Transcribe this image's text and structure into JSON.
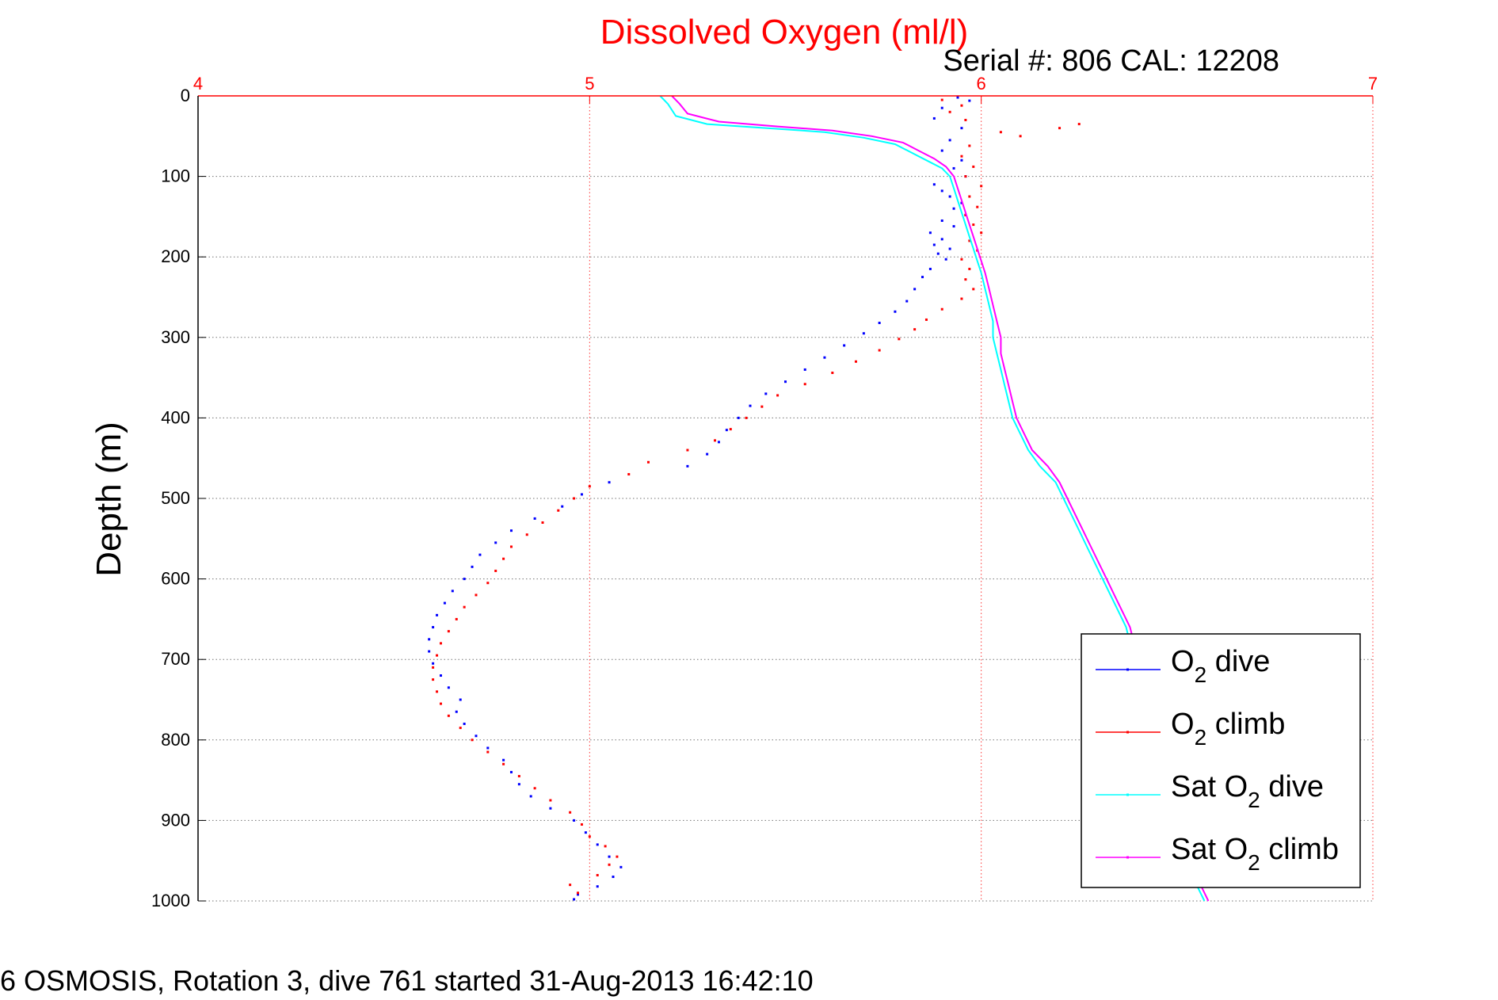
{
  "chart_data": {
    "type": "scatter",
    "title": "Dissolved Oxygen (ml/l)",
    "subtitle": "Serial #: 806  CAL: 12208",
    "ylabel": "Depth (m)",
    "footer": "6 OSMOSIS, Rotation 3, dive 761 started 31-Aug-2013 16:42:10",
    "xlim": [
      4,
      7
    ],
    "ylim": [
      0,
      1000
    ],
    "y_reversed": true,
    "x_axis_position": "top",
    "xticks": [
      "4",
      "5",
      "6",
      "7"
    ],
    "yticks": [
      "0",
      "100",
      "200",
      "300",
      "400",
      "500",
      "600",
      "700",
      "800",
      "900",
      "1000"
    ],
    "grid": true,
    "legend_position": "lower-right",
    "colors": {
      "title": "#ff0000",
      "x_axis": "#ff0000",
      "grid_x": "#ff0000",
      "grid_y": "#000000",
      "o2_dive": "#0000ff",
      "o2_climb": "#ff0000",
      "sat_dive": "#00ffff",
      "sat_climb": "#ff00ff"
    },
    "legend": [
      {
        "key": "o2_dive",
        "prefix": "O",
        "sub": "2",
        "suffix": " dive",
        "color": "#0000ff"
      },
      {
        "key": "o2_climb",
        "prefix": "O",
        "sub": "2",
        "suffix": " climb",
        "color": "#ff0000"
      },
      {
        "key": "sat_dive",
        "prefix": "Sat O",
        "sub": "2",
        "suffix": " dive",
        "color": "#00ffff"
      },
      {
        "key": "sat_climb",
        "prefix": "Sat O",
        "sub": "2",
        "suffix": " climb",
        "color": "#ff00ff"
      }
    ],
    "series": [
      {
        "key": "o2_dive",
        "style": "points",
        "color": "#0000ff",
        "points": [
          [
            5.94,
            2
          ],
          [
            5.97,
            6
          ],
          [
            5.9,
            15
          ],
          [
            5.88,
            28
          ],
          [
            5.95,
            40
          ],
          [
            5.92,
            55
          ],
          [
            5.9,
            68
          ],
          [
            5.95,
            80
          ],
          [
            5.93,
            90
          ],
          [
            5.96,
            100
          ],
          [
            5.88,
            110
          ],
          [
            5.9,
            118
          ],
          [
            5.92,
            125
          ],
          [
            5.95,
            133
          ],
          [
            5.93,
            140
          ],
          [
            5.96,
            148
          ],
          [
            5.9,
            155
          ],
          [
            5.93,
            162
          ],
          [
            5.87,
            170
          ],
          [
            5.9,
            178
          ],
          [
            5.88,
            185
          ],
          [
            5.92,
            190
          ],
          [
            5.89,
            196
          ],
          [
            5.91,
            203
          ],
          [
            5.87,
            215
          ],
          [
            5.85,
            225
          ],
          [
            5.83,
            240
          ],
          [
            5.81,
            255
          ],
          [
            5.78,
            268
          ],
          [
            5.74,
            282
          ],
          [
            5.7,
            295
          ],
          [
            5.65,
            310
          ],
          [
            5.6,
            325
          ],
          [
            5.55,
            340
          ],
          [
            5.5,
            355
          ],
          [
            5.45,
            370
          ],
          [
            5.41,
            385
          ],
          [
            5.38,
            400
          ],
          [
            5.35,
            415
          ],
          [
            5.33,
            430
          ],
          [
            5.3,
            445
          ],
          [
            5.25,
            460
          ],
          [
            5.05,
            480
          ],
          [
            4.98,
            495
          ],
          [
            4.93,
            510
          ],
          [
            4.86,
            525
          ],
          [
            4.8,
            540
          ],
          [
            4.76,
            555
          ],
          [
            4.72,
            570
          ],
          [
            4.7,
            585
          ],
          [
            4.68,
            600
          ],
          [
            4.65,
            615
          ],
          [
            4.63,
            630
          ],
          [
            4.61,
            645
          ],
          [
            4.6,
            660
          ],
          [
            4.59,
            675
          ],
          [
            4.59,
            690
          ],
          [
            4.6,
            705
          ],
          [
            4.62,
            720
          ],
          [
            4.64,
            735
          ],
          [
            4.67,
            750
          ],
          [
            4.66,
            765
          ],
          [
            4.68,
            780
          ],
          [
            4.71,
            795
          ],
          [
            4.74,
            810
          ],
          [
            4.78,
            825
          ],
          [
            4.8,
            840
          ],
          [
            4.82,
            855
          ],
          [
            4.85,
            870
          ],
          [
            4.9,
            885
          ],
          [
            4.96,
            900
          ],
          [
            4.99,
            915
          ],
          [
            5.02,
            930
          ],
          [
            5.05,
            945
          ],
          [
            5.08,
            958
          ],
          [
            5.06,
            970
          ],
          [
            5.02,
            982
          ],
          [
            4.97,
            992
          ],
          [
            4.96,
            998
          ]
        ]
      },
      {
        "key": "o2_climb",
        "style": "points",
        "color": "#ff0000",
        "points": [
          [
            4.97,
            990
          ],
          [
            4.95,
            980
          ],
          [
            5.02,
            968
          ],
          [
            5.05,
            955
          ],
          [
            5.07,
            945
          ],
          [
            5.04,
            932
          ],
          [
            5.0,
            920
          ],
          [
            4.98,
            905
          ],
          [
            4.95,
            890
          ],
          [
            4.9,
            875
          ],
          [
            4.86,
            860
          ],
          [
            4.82,
            845
          ],
          [
            4.78,
            830
          ],
          [
            4.74,
            815
          ],
          [
            4.7,
            800
          ],
          [
            4.67,
            785
          ],
          [
            4.64,
            770
          ],
          [
            4.62,
            755
          ],
          [
            4.61,
            740
          ],
          [
            4.6,
            725
          ],
          [
            4.6,
            710
          ],
          [
            4.61,
            695
          ],
          [
            4.62,
            680
          ],
          [
            4.64,
            665
          ],
          [
            4.66,
            650
          ],
          [
            4.68,
            635
          ],
          [
            4.71,
            620
          ],
          [
            4.74,
            605
          ],
          [
            4.76,
            590
          ],
          [
            4.78,
            575
          ],
          [
            4.8,
            560
          ],
          [
            4.84,
            545
          ],
          [
            4.88,
            530
          ],
          [
            4.92,
            515
          ],
          [
            4.96,
            500
          ],
          [
            5.0,
            485
          ],
          [
            5.1,
            470
          ],
          [
            5.15,
            455
          ],
          [
            5.25,
            440
          ],
          [
            5.32,
            428
          ],
          [
            5.36,
            414
          ],
          [
            5.4,
            400
          ],
          [
            5.44,
            386
          ],
          [
            5.48,
            372
          ],
          [
            5.55,
            358
          ],
          [
            5.62,
            344
          ],
          [
            5.68,
            330
          ],
          [
            5.74,
            316
          ],
          [
            5.79,
            302
          ],
          [
            5.83,
            290
          ],
          [
            5.86,
            278
          ],
          [
            5.9,
            265
          ],
          [
            5.95,
            252
          ],
          [
            5.98,
            240
          ],
          [
            5.96,
            228
          ],
          [
            5.97,
            215
          ],
          [
            5.95,
            203
          ],
          [
            5.99,
            192
          ],
          [
            5.97,
            180
          ],
          [
            6.0,
            170
          ],
          [
            5.98,
            160
          ],
          [
            5.96,
            148
          ],
          [
            5.99,
            138
          ],
          [
            5.97,
            125
          ],
          [
            6.0,
            112
          ],
          [
            5.96,
            100
          ],
          [
            5.98,
            88
          ],
          [
            5.95,
            75
          ],
          [
            5.97,
            62
          ],
          [
            6.1,
            50
          ],
          [
            6.2,
            40
          ],
          [
            6.25,
            35
          ],
          [
            6.05,
            45
          ],
          [
            5.96,
            30
          ],
          [
            5.92,
            20
          ],
          [
            5.95,
            12
          ],
          [
            5.9,
            5
          ]
        ]
      },
      {
        "key": "sat_dive",
        "style": "line",
        "color": "#00ffff",
        "points": [
          [
            5.18,
            0
          ],
          [
            5.2,
            10
          ],
          [
            5.22,
            25
          ],
          [
            5.3,
            35
          ],
          [
            5.45,
            40
          ],
          [
            5.6,
            45
          ],
          [
            5.7,
            52
          ],
          [
            5.78,
            60
          ],
          [
            5.82,
            70
          ],
          [
            5.86,
            80
          ],
          [
            5.9,
            90
          ],
          [
            5.92,
            100
          ],
          [
            5.93,
            115
          ],
          [
            5.94,
            130
          ],
          [
            5.95,
            145
          ],
          [
            5.96,
            160
          ],
          [
            5.97,
            175
          ],
          [
            5.98,
            190
          ],
          [
            5.99,
            205
          ],
          [
            6.0,
            220
          ],
          [
            6.01,
            240
          ],
          [
            6.02,
            260
          ],
          [
            6.03,
            280
          ],
          [
            6.03,
            300
          ],
          [
            6.04,
            320
          ],
          [
            6.05,
            340
          ],
          [
            6.06,
            360
          ],
          [
            6.07,
            380
          ],
          [
            6.08,
            400
          ],
          [
            6.1,
            420
          ],
          [
            6.12,
            440
          ],
          [
            6.15,
            460
          ],
          [
            6.19,
            480
          ],
          [
            6.21,
            500
          ],
          [
            6.23,
            520
          ],
          [
            6.25,
            540
          ],
          [
            6.27,
            560
          ],
          [
            6.29,
            580
          ],
          [
            6.31,
            600
          ],
          [
            6.33,
            620
          ],
          [
            6.35,
            640
          ],
          [
            6.37,
            660
          ],
          [
            6.38,
            680
          ],
          [
            6.4,
            700
          ],
          [
            6.41,
            720
          ],
          [
            6.42,
            740
          ],
          [
            6.44,
            760
          ],
          [
            6.45,
            780
          ],
          [
            6.46,
            800
          ],
          [
            6.47,
            820
          ],
          [
            6.48,
            840
          ],
          [
            6.49,
            860
          ],
          [
            6.5,
            880
          ],
          [
            6.51,
            900
          ],
          [
            6.52,
            920
          ],
          [
            6.53,
            940
          ],
          [
            6.54,
            960
          ],
          [
            6.55,
            980
          ],
          [
            6.57,
            1000
          ]
        ]
      },
      {
        "key": "sat_climb",
        "style": "line",
        "color": "#ff00ff",
        "points": [
          [
            5.21,
            0
          ],
          [
            5.23,
            10
          ],
          [
            5.25,
            22
          ],
          [
            5.33,
            32
          ],
          [
            5.48,
            38
          ],
          [
            5.62,
            43
          ],
          [
            5.72,
            50
          ],
          [
            5.8,
            58
          ],
          [
            5.84,
            68
          ],
          [
            5.88,
            78
          ],
          [
            5.91,
            88
          ],
          [
            5.93,
            100
          ],
          [
            5.94,
            115
          ],
          [
            5.95,
            130
          ],
          [
            5.96,
            145
          ],
          [
            5.97,
            160
          ],
          [
            5.98,
            175
          ],
          [
            5.99,
            190
          ],
          [
            6.0,
            205
          ],
          [
            6.01,
            220
          ],
          [
            6.02,
            240
          ],
          [
            6.03,
            260
          ],
          [
            6.04,
            280
          ],
          [
            6.05,
            300
          ],
          [
            6.05,
            320
          ],
          [
            6.06,
            340
          ],
          [
            6.07,
            360
          ],
          [
            6.08,
            380
          ],
          [
            6.09,
            400
          ],
          [
            6.11,
            420
          ],
          [
            6.13,
            440
          ],
          [
            6.17,
            460
          ],
          [
            6.2,
            480
          ],
          [
            6.22,
            500
          ],
          [
            6.24,
            520
          ],
          [
            6.26,
            540
          ],
          [
            6.28,
            560
          ],
          [
            6.3,
            580
          ],
          [
            6.32,
            600
          ],
          [
            6.34,
            620
          ],
          [
            6.36,
            640
          ],
          [
            6.38,
            660
          ],
          [
            6.39,
            680
          ],
          [
            6.41,
            700
          ],
          [
            6.42,
            720
          ],
          [
            6.43,
            740
          ],
          [
            6.45,
            760
          ],
          [
            6.46,
            780
          ],
          [
            6.47,
            800
          ],
          [
            6.48,
            820
          ],
          [
            6.49,
            840
          ],
          [
            6.5,
            860
          ],
          [
            6.51,
            880
          ],
          [
            6.52,
            900
          ],
          [
            6.53,
            920
          ],
          [
            6.54,
            940
          ],
          [
            6.55,
            960
          ],
          [
            6.56,
            980
          ],
          [
            6.58,
            1000
          ]
        ]
      }
    ]
  }
}
